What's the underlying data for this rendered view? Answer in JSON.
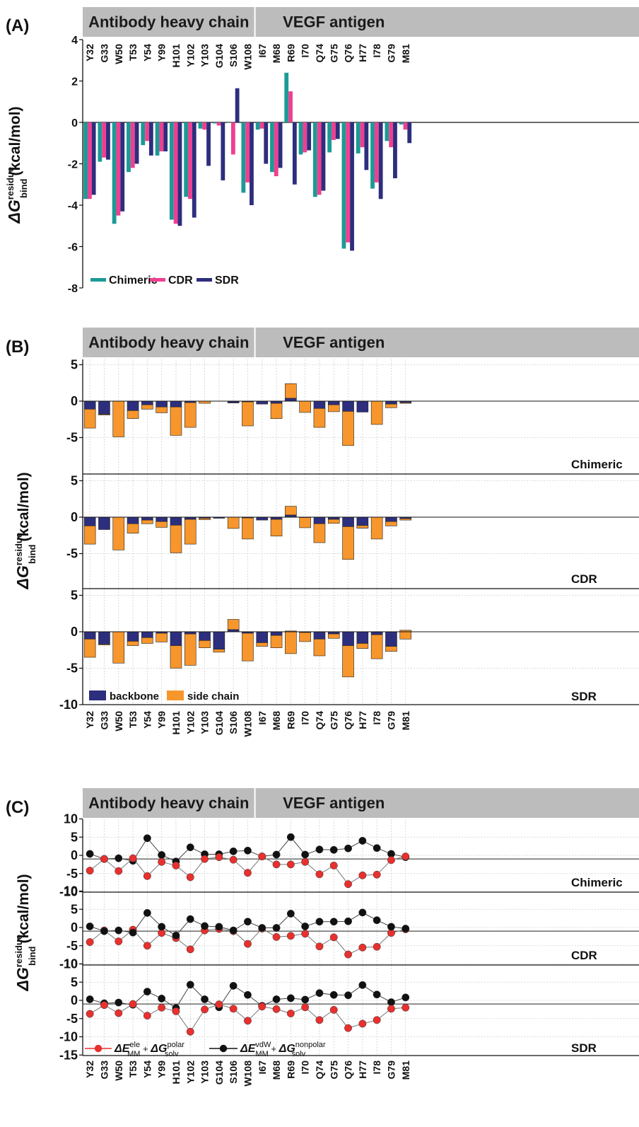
{
  "figure": {
    "residues": [
      "Y32",
      "G33",
      "W50",
      "T53",
      "Y54",
      "Y99",
      "H101",
      "Y102",
      "Y103",
      "G104",
      "S106",
      "W108",
      "I67",
      "M68",
      "R69",
      "I70",
      "Q74",
      "G75",
      "Q76",
      "H77",
      "I78",
      "G79",
      "M81"
    ],
    "groups": [
      {
        "label": "Antibody heavy chain",
        "start": 0,
        "end": 11
      },
      {
        "label": "VEGF antigen",
        "start": 12,
        "end": 22
      }
    ]
  },
  "chart_data": [
    {
      "type": "bar",
      "panel": "(A)",
      "ylabel_base": "ΔG",
      "ylabel_sup": "residue",
      "ylabel_sub": "bind",
      "ylabel_unit": "(kcal/mol)",
      "ylim": [
        -8,
        4
      ],
      "yticks": [
        4,
        2,
        0,
        -2,
        -4,
        -6,
        -8
      ],
      "legend_position": "bottom-left",
      "series": [
        {
          "name": "Chimeric",
          "color": "#1c9a95",
          "values": [
            -3.7,
            -1.9,
            -4.9,
            -2.4,
            -1.1,
            -1.6,
            -4.7,
            -3.6,
            -0.3,
            -0.05,
            0,
            -3.4,
            -0.35,
            -2.4,
            2.4,
            -1.55,
            -3.6,
            -1.45,
            -6.1,
            -1.5,
            -3.2,
            -0.9,
            -0.1
          ]
        },
        {
          "name": "CDR",
          "color": "#ef3f91",
          "values": [
            -3.7,
            -1.7,
            -4.5,
            -2.2,
            -0.9,
            -1.4,
            -4.9,
            -3.7,
            -0.35,
            -0.15,
            -1.55,
            -2.9,
            -0.3,
            -2.6,
            1.5,
            -1.45,
            -3.5,
            -0.85,
            -5.8,
            -1.2,
            -2.9,
            -1.2,
            -0.35
          ]
        },
        {
          "name": "SDR",
          "color": "#2d2e7d",
          "values": [
            -3.5,
            -1.8,
            -4.3,
            -2.0,
            -1.6,
            -1.4,
            -5.0,
            -4.6,
            -2.1,
            -2.8,
            1.65,
            -4.0,
            -2.0,
            -2.2,
            -3.0,
            -1.35,
            -3.3,
            -0.8,
            -6.2,
            -2.3,
            -3.7,
            -2.7,
            -1.0
          ]
        }
      ]
    },
    {
      "type": "bar",
      "panel": "(B)",
      "stacked": true,
      "ylabel_base": "ΔG",
      "ylabel_sup": "residue",
      "ylabel_sub": "bind",
      "ylabel_unit": "(kcal/mol)",
      "ylim": [
        -10,
        5
      ],
      "yticks": [
        5,
        0,
        -5,
        -10
      ],
      "legend_position": "bottom-left",
      "series_colors": {
        "backbone": "#2d2e7d",
        "side chain": "#f7962d"
      },
      "subpanels": [
        {
          "label": "Chimeric",
          "backbone": [
            -1.1,
            -1.8,
            0,
            -1.3,
            -0.5,
            -0.8,
            -0.8,
            -0.2,
            0,
            0,
            -0.2,
            -0.1,
            -0.4,
            -0.3,
            0.4,
            0,
            -1.0,
            -0.5,
            -1.4,
            -1.5,
            0,
            -0.4,
            -0.2
          ],
          "side_chain": [
            -2.6,
            -0.1,
            -4.9,
            -1.1,
            -0.6,
            -0.8,
            -3.9,
            -3.4,
            -0.3,
            0,
            -0.05,
            -3.3,
            0,
            -2.1,
            2.0,
            -1.55,
            -2.6,
            -0.95,
            -4.7,
            0,
            -3.2,
            -0.5,
            -0.1
          ]
        },
        {
          "label": "CDR",
          "backbone": [
            -1.2,
            -1.7,
            0,
            -0.9,
            -0.4,
            -0.6,
            -1.1,
            -0.3,
            -0.15,
            -0.15,
            0,
            -0.1,
            -0.4,
            -0.3,
            0.3,
            -0.05,
            -0.9,
            -0.3,
            -1.3,
            -1.5,
            0,
            -0.6,
            -0.2
          ],
          "side_chain": [
            -2.5,
            0,
            -4.5,
            -1.3,
            -0.5,
            -0.8,
            -3.8,
            -3.4,
            -0.2,
            0,
            -1.55,
            -2.9,
            0,
            -2.3,
            1.2,
            -1.4,
            -2.6,
            -0.55,
            -4.5,
            0.35,
            -3.0,
            -0.6,
            -0.2
          ]
        },
        {
          "label": "SDR",
          "backbone": [
            -1.0,
            -1.7,
            0,
            -1.3,
            -0.8,
            -0.2,
            -1.9,
            -0.3,
            -1.2,
            -2.4,
            0.3,
            -0.2,
            -1.5,
            -0.5,
            0.1,
            -0.1,
            -1.0,
            -0.3,
            -1.9,
            -1.6,
            -0.4,
            -2.0,
            0.2
          ],
          "side_chain": [
            -2.5,
            -0.1,
            -4.3,
            -0.6,
            -0.8,
            -1.2,
            -3.1,
            -4.3,
            -1.0,
            -0.4,
            1.4,
            -3.8,
            -0.5,
            -1.7,
            -3.1,
            -1.25,
            -2.3,
            -0.6,
            -4.3,
            -0.7,
            -3.3,
            -0.7,
            -1.2
          ]
        }
      ],
      "legend": [
        "backbone",
        "side chain"
      ]
    },
    {
      "type": "line",
      "panel": "(C)",
      "ylabel_base": "ΔG",
      "ylabel_sup": "residue",
      "ylabel_sub": "bind",
      "ylabel_unit": "(kcal/mol)",
      "ylim": [
        -15,
        10
      ],
      "yticks": [
        10,
        5,
        0,
        -5,
        -10,
        -15
      ],
      "legend_position": "bottom-left",
      "series_colors": {
        "ele": "#e8302e",
        "vdw": "#111111"
      },
      "legend_ele": {
        "t1": "ΔE",
        "sup1": "ele",
        "sub1": "MM",
        "plus": " + ",
        "t2": "ΔG",
        "sup2": "polar",
        "sub2": "solv"
      },
      "legend_vdw": {
        "t1": "ΔE",
        "sup1": "vdW",
        "sub1": "MM",
        "plus": " + ",
        "t2": "ΔG",
        "sup2": "nonpolar",
        "sub2": "solv"
      },
      "subpanels": [
        {
          "label": "Chimeric",
          "ele": [
            -4.2,
            -1.0,
            -4.3,
            -0.8,
            -5.7,
            -1.8,
            -2.8,
            -6.0,
            -1.0,
            -0.5,
            -1.2,
            -4.8,
            -0.3,
            -2.5,
            -2.5,
            -1.8,
            -5.2,
            -2.8,
            -7.9,
            -5.5,
            -5.3,
            -1.3,
            -0.3
          ],
          "vdw": [
            0.4,
            -1.0,
            -0.8,
            -1.5,
            4.7,
            0.1,
            -1.7,
            2.2,
            0.3,
            0.3,
            1.1,
            1.3,
            -0.3,
            0.2,
            5.0,
            0.2,
            1.6,
            1.5,
            1.9,
            4.0,
            2.0,
            0.4,
            -0.5
          ]
        },
        {
          "label": "CDR",
          "ele": [
            -4.0,
            -0.8,
            -3.8,
            -0.6,
            -5.0,
            -1.5,
            -2.9,
            -6.0,
            -0.8,
            -0.4,
            -1.0,
            -4.5,
            -0.3,
            -2.6,
            -2.3,
            -1.7,
            -5.2,
            -2.7,
            -7.4,
            -5.5,
            -5.3,
            -1.5,
            -0.5
          ]
        },
        {
          "label": "SDR",
          "ele": [
            -3.7,
            -1.3,
            -3.5,
            -1.0,
            -4.2,
            -2.0,
            -3.0,
            -8.6,
            -2.5,
            -1.1,
            -2.3,
            -5.6,
            -1.7,
            -2.4,
            -3.6,
            -1.9,
            -5.4,
            -2.6,
            -7.6,
            -6.4,
            -5.4,
            -2.3,
            -2.0
          ],
          "vdw": [
            0.3,
            -0.8,
            -0.6,
            -1.2,
            2.4,
            0.5,
            -2.1,
            4.3,
            0.3,
            -1.9,
            4.0,
            1.5,
            -1.5,
            0.3,
            0.6,
            0.2,
            2.0,
            1.5,
            1.4,
            4.2,
            1.6,
            -0.5,
            0.8
          ]
        }
      ]
    }
  ]
}
